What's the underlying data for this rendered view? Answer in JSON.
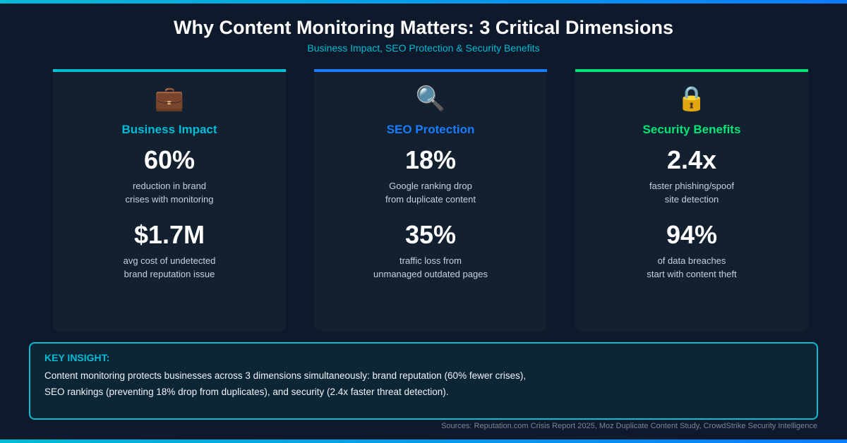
{
  "title": "Why Content Monitoring Matters: 3 Critical Dimensions",
  "subtitle": "Business Impact, SEO Protection & Security Benefits",
  "cards": [
    {
      "icon": "briefcase-icon",
      "glyph": "💼",
      "color": "#00bcd4",
      "title": "Business Impact",
      "stat1": "60%",
      "desc1": [
        "reduction in brand",
        "crises with monitoring"
      ],
      "stat2": "$1.7M",
      "desc2": [
        "avg cost of undetected",
        "brand reputation issue"
      ]
    },
    {
      "icon": "magnifier-icon",
      "glyph": "🔍",
      "color": "#1a7cff",
      "title": "SEO Protection",
      "stat1": "18%",
      "desc1": [
        "Google ranking drop",
        "from duplicate content"
      ],
      "stat2": "35%",
      "desc2": [
        "traffic loss from",
        "unmanaged outdated pages"
      ]
    },
    {
      "icon": "lock-icon",
      "glyph": "🔒",
      "color": "#00e676",
      "title": "Security Benefits",
      "stat1": "2.4x",
      "desc1": [
        "faster phishing/spoof",
        "site detection"
      ],
      "stat2": "94%",
      "desc2": [
        "of data breaches",
        "start with content theft"
      ]
    }
  ],
  "insight": {
    "label": "KEY INSIGHT:",
    "lines": [
      "Content monitoring protects businesses across 3 dimensions simultaneously: brand reputation (60% fewer crises),",
      "SEO rankings (preventing 18% drop from duplicates), and security (2.4x faster threat detection)."
    ]
  },
  "sources": "Sources: Reputation.com Crisis Report 2025, Moz Duplicate Content Study, CrowdStrike Security Intelligence"
}
